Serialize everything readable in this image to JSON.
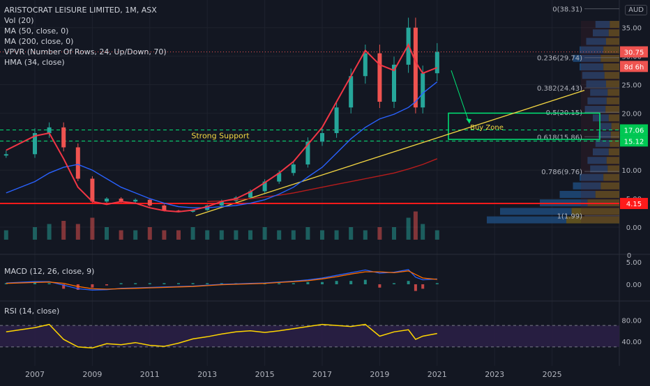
{
  "header": {
    "legend": [
      "ARISTOCRAT LEISURE LIMITED, 1M, ASX",
      "Vol (20)",
      "MA (50, close, 0)",
      "MA (200, close, 0)",
      "VPVR (Number Of Rows, 24, Up/Down, 70)",
      "HMA (34, close)"
    ],
    "currency": "AUD"
  },
  "colors": {
    "background": "#131722",
    "grid": "#1e222d",
    "up": "#26a69a",
    "down": "#ef5350",
    "ma50": "#2962ff",
    "ma200": "#b71c1c",
    "hma": "#f23645",
    "trendline": "#f5d742",
    "support": "#00e676",
    "hline": "#ff1b1b",
    "macd": "#2962ff",
    "signal": "#ff6d00",
    "rsi": "#ffd600",
    "rsi_band": "#2a1f45"
  },
  "price_axis": {
    "ticks": [
      "35.00",
      "30.00",
      "25.00",
      "20.00",
      "15.00",
      "10.00",
      "5.00",
      "0.00"
    ],
    "labels": [
      {
        "text": "30.75",
        "kind": "last-price"
      },
      {
        "text": "8d 6h",
        "kind": "countdown"
      },
      {
        "text": "17.06",
        "kind": "support"
      },
      {
        "text": "15.12",
        "kind": "support"
      },
      {
        "text": "4.15",
        "kind": "hline"
      }
    ]
  },
  "time_axis": {
    "ticks": [
      "2007",
      "2009",
      "2011",
      "2013",
      "2015",
      "2017",
      "2019",
      "2021",
      "2023",
      "2025"
    ]
  },
  "annotations": {
    "strong_support": "Strong Support",
    "buy_zone": "Buy Zone",
    "fib_levels": [
      {
        "label": "0(38.31)",
        "value": 38.31
      },
      {
        "label": "0.236(29.74)",
        "value": 29.74
      },
      {
        "label": "0.382(24.43)",
        "value": 24.43
      },
      {
        "label": "0.5(20.15)",
        "value": 20.15
      },
      {
        "label": "0.618(15.86)",
        "value": 15.86
      },
      {
        "label": "0.786(9.76)",
        "value": 9.76
      },
      {
        "label": "1(1.99)",
        "value": 1.99
      }
    ]
  },
  "macd": {
    "legend": "MACD (12, 26, close, 9)",
    "ticks": [
      "5.00",
      "0.00"
    ],
    "top_tick": "0"
  },
  "rsi": {
    "legend": "RSI (14, close)",
    "ticks": [
      "80.00",
      "40.00"
    ]
  },
  "chart_data": {
    "type": "line",
    "title": "ARISTOCRAT LEISURE LIMITED, 1M, ASX",
    "x": [
      "2006",
      "2007",
      "2007.5",
      "2008",
      "2008.5",
      "2009",
      "2009.5",
      "2010",
      "2010.5",
      "2011",
      "2011.5",
      "2012",
      "2012.5",
      "2013",
      "2013.5",
      "2014",
      "2014.5",
      "2015",
      "2015.5",
      "2016",
      "2016.5",
      "2017",
      "2017.5",
      "2018",
      "2018.5",
      "2019",
      "2019.5",
      "2020",
      "2020.25",
      "2020.5",
      "2021"
    ],
    "series": [
      {
        "name": "close",
        "values": [
          12.8,
          16.5,
          17.5,
          14.0,
          8.5,
          4.5,
          5.0,
          4.5,
          4.8,
          3.8,
          2.9,
          2.7,
          3.0,
          3.8,
          4.6,
          5.2,
          6.3,
          8.0,
          9.5,
          11.0,
          15.0,
          16.5,
          21.0,
          26.5,
          30.5,
          22.0,
          28.5,
          35.0,
          21.0,
          27.0,
          30.75
        ]
      },
      {
        "name": "HMA (34, close)",
        "values": [
          13.5,
          16.0,
          16.5,
          12.0,
          7.0,
          4.5,
          4.0,
          4.5,
          4.2,
          3.4,
          2.9,
          2.7,
          3.0,
          3.6,
          4.5,
          5.0,
          6.2,
          7.8,
          9.5,
          11.5,
          14.5,
          17.5,
          22.0,
          26.5,
          31.0,
          28.5,
          27.5,
          32.0,
          29.0,
          27.0,
          28.0
        ]
      },
      {
        "name": "MA (50, close, 0)",
        "values": [
          6.0,
          8.0,
          9.5,
          10.5,
          11.0,
          10.0,
          8.5,
          7.0,
          6.0,
          5.0,
          4.2,
          3.6,
          3.4,
          3.4,
          3.6,
          3.8,
          4.2,
          4.8,
          5.8,
          7.0,
          8.8,
          10.5,
          13.0,
          15.5,
          17.5,
          19.0,
          19.8,
          21.0,
          22.0,
          23.5,
          25.5
        ]
      },
      {
        "name": "MA (200, close, 0)",
        "values": [
          null,
          null,
          null,
          null,
          null,
          null,
          null,
          null,
          null,
          null,
          null,
          null,
          null,
          4.5,
          4.6,
          4.8,
          5.0,
          5.3,
          5.6,
          6.0,
          6.5,
          7.0,
          7.5,
          8.0,
          8.5,
          9.0,
          9.5,
          10.2,
          10.6,
          11.0,
          12.0
        ]
      }
    ],
    "ylim": [
      0,
      39
    ],
    "volume": [
      3,
      4,
      5,
      6,
      5,
      7,
      4,
      3,
      3,
      4,
      3,
      3,
      4,
      3,
      3,
      3,
      3,
      4,
      3,
      3,
      4,
      3,
      3,
      4,
      3,
      4,
      4,
      7,
      9,
      5,
      3
    ],
    "macd_line": [
      0.3,
      0.6,
      0.6,
      -0.2,
      -1.0,
      -1.3,
      -1.2,
      -0.9,
      -0.8,
      -0.7,
      -0.6,
      -0.5,
      -0.4,
      -0.2,
      0.0,
      0.1,
      0.2,
      0.3,
      0.5,
      0.7,
      1.0,
      1.4,
      2.0,
      2.6,
      3.2,
      2.5,
      2.7,
      3.3,
      1.6,
      1.0,
      1.2
    ],
    "signal_line": [
      0.2,
      0.4,
      0.5,
      0.2,
      -0.5,
      -1.0,
      -1.1,
      -1.0,
      -0.9,
      -0.8,
      -0.7,
      -0.6,
      -0.5,
      -0.3,
      -0.1,
      0.0,
      0.1,
      0.2,
      0.4,
      0.6,
      0.8,
      1.2,
      1.7,
      2.3,
      2.8,
      2.8,
      2.6,
      3.0,
      2.2,
      1.4,
      1.1
    ],
    "rsi": [
      58,
      66,
      72,
      44,
      30,
      28,
      36,
      34,
      38,
      33,
      31,
      37,
      45,
      49,
      54,
      58,
      60,
      57,
      60,
      64,
      68,
      72,
      70,
      68,
      72,
      50,
      58,
      62,
      44,
      50,
      55
    ],
    "rsi_bands": [
      70,
      30
    ]
  }
}
